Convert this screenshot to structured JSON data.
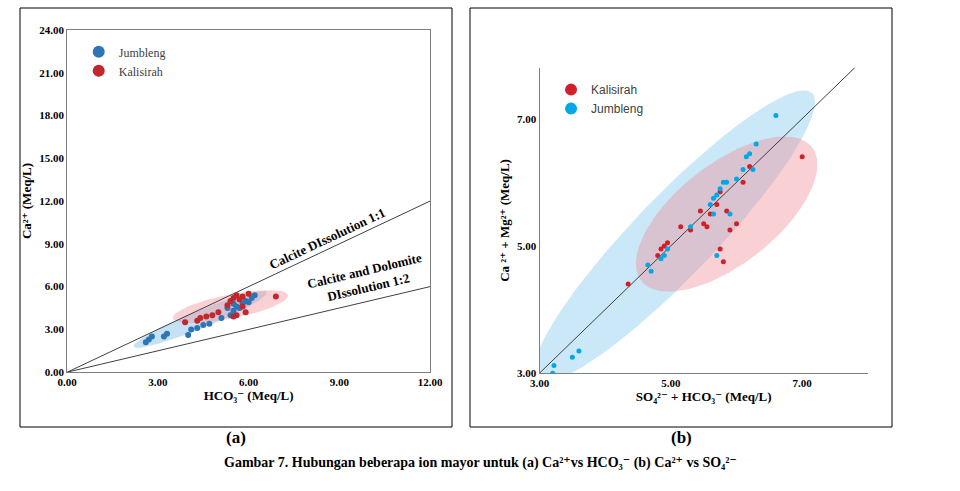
{
  "caption": "Gambar 7. Hubungan beberapa ion mayor untuk (a) Ca²⁺vs HCO₃⁻ (b) Ca²⁺ vs SO₄²⁻",
  "chart_data": [
    {
      "type": "scatter",
      "panel_label": "(a)",
      "x_label": "HCO₃⁻ (Meq/L)",
      "y_label": "Ca²⁺ (Meq/L)",
      "xlim": [
        0,
        12
      ],
      "ylim": [
        0,
        24
      ],
      "xticks": [
        {
          "value": 0,
          "label": "0.00"
        },
        {
          "value": 3,
          "label": "3.00"
        },
        {
          "value": 6,
          "label": "6.00"
        },
        {
          "value": 9,
          "label": "9.00"
        },
        {
          "value": 12,
          "label": "12.00"
        }
      ],
      "yticks": [
        {
          "value": 0,
          "label": "0.00"
        },
        {
          "value": 3,
          "label": "3.00"
        },
        {
          "value": 6,
          "label": "6.00"
        },
        {
          "value": 9,
          "label": "9.00"
        },
        {
          "value": 12,
          "label": "12.00"
        },
        {
          "value": 15,
          "label": "15.00"
        },
        {
          "value": 18,
          "label": "18.00"
        },
        {
          "value": 21,
          "label": "21.00"
        },
        {
          "value": 24,
          "label": "24.00"
        }
      ],
      "grid": false,
      "legend": "upper left",
      "marker": "circle",
      "reference_lines": [
        {
          "x": [
            0,
            12
          ],
          "y": [
            0,
            12
          ],
          "color": "#404040"
        },
        {
          "x": [
            0,
            12
          ],
          "y": [
            0,
            6
          ],
          "color": "#404040"
        }
      ],
      "annotations": [
        {
          "text": "Calcite DIssolution 1:1",
          "x": 8.6,
          "y": 9.4
        },
        {
          "text": "Calcite and Dolomite\nDIssolution 1:2",
          "x": 9.9,
          "y": 6.5
        }
      ],
      "regions": [
        {
          "center": [
            4.4,
            3.7
          ],
          "major": [
            6.6,
            5.6
          ],
          "minor": [
            4.3,
            4.29
          ],
          "color": "rgba(150,200,235,0.55)"
        },
        {
          "center": [
            5.4,
            4.6
          ],
          "major": [
            7.3,
            5.4
          ],
          "minor": [
            5.33,
            5.43
          ],
          "color": "rgba(240,140,150,0.40)"
        }
      ],
      "series": [
        {
          "name": "Jumbleng",
          "color": "#2e75b6",
          "x": [
            2.6,
            2.7,
            2.8,
            3.2,
            3.3,
            4.0,
            4.1,
            4.3,
            4.5,
            4.7,
            5.1,
            5.4,
            5.5,
            5.6,
            5.7,
            5.8,
            5.9,
            6.0,
            6.1,
            6.2,
            5.5,
            5.3
          ],
          "values": [
            2.1,
            2.3,
            2.5,
            2.5,
            2.7,
            2.6,
            3.0,
            3.1,
            3.3,
            3.4,
            3.8,
            4.0,
            4.3,
            4.6,
            4.5,
            4.8,
            5.0,
            4.9,
            5.2,
            5.4,
            4.8,
            4.5
          ]
        },
        {
          "name": "Kalisirah",
          "color": "#c0282d",
          "x": [
            3.9,
            4.3,
            4.4,
            4.6,
            4.8,
            5.0,
            5.3,
            5.4,
            5.5,
            5.6,
            5.7,
            5.8,
            5.9,
            5.5,
            5.6,
            6.0,
            6.9,
            5.8
          ],
          "values": [
            3.5,
            3.6,
            3.8,
            3.9,
            4.0,
            4.2,
            4.7,
            5.0,
            5.2,
            5.4,
            5.1,
            4.6,
            4.2,
            3.9,
            4.0,
            5.5,
            5.3,
            5.3
          ]
        }
      ]
    },
    {
      "type": "scatter",
      "panel_label": "(b)",
      "x_label": "SO₄²⁻ + HCO₃⁻ (Meq/L)",
      "y_label": "Ca ²⁺ + Mg²⁺ (Meq/L)",
      "xlim": [
        3,
        8
      ],
      "ylim": [
        3,
        7.8
      ],
      "xticks": [
        {
          "value": 3,
          "label": "3.00"
        },
        {
          "value": 5,
          "label": "5.00"
        },
        {
          "value": 7,
          "label": "7.00"
        }
      ],
      "yticks": [
        {
          "value": 3,
          "label": "3.00"
        },
        {
          "value": 5,
          "label": "5.00"
        },
        {
          "value": 7,
          "label": "7.00"
        }
      ],
      "grid": false,
      "legend": "upper left",
      "marker": "circle",
      "reference_lines": [
        {
          "x": [
            3,
            8
          ],
          "y": [
            3,
            8
          ],
          "color": "#404040"
        }
      ],
      "regions": [
        {
          "center": [
            5.05,
            5.15
          ],
          "major": [
            7.15,
            7.4
          ],
          "minor": [
            4.61,
            5.59
          ],
          "color": "rgba(150,210,240,0.50)"
        },
        {
          "center": [
            5.85,
            5.5
          ],
          "major": [
            7.15,
            6.55
          ],
          "minor": [
            5.38,
            6.12
          ],
          "color": "rgba(240,140,150,0.40)"
        }
      ],
      "series": [
        {
          "name": "Kalisirah",
          "color": "#d1202a",
          "x": [
            4.35,
            4.8,
            4.85,
            4.9,
            4.95,
            5.15,
            5.3,
            5.45,
            5.55,
            5.6,
            5.7,
            5.75,
            5.8,
            5.85,
            5.9,
            6.0,
            6.1,
            6.2,
            7.0,
            5.75,
            5.5
          ],
          "values": [
            4.4,
            4.85,
            4.95,
            5.0,
            5.05,
            5.3,
            5.25,
            5.55,
            5.3,
            5.5,
            5.65,
            4.95,
            4.75,
            5.55,
            5.25,
            5.35,
            6.0,
            6.25,
            6.4,
            5.85,
            5.35
          ]
        },
        {
          "name": "Jumbleng",
          "color": "#00a8e8",
          "x": [
            3.2,
            3.22,
            3.5,
            3.6,
            4.65,
            4.7,
            4.85,
            4.9,
            5.6,
            5.65,
            5.7,
            5.75,
            5.8,
            5.85,
            5.65,
            5.9,
            5.7,
            6.1,
            6.15,
            6.2,
            6.25,
            6.3,
            6.6,
            5.3,
            4.95,
            6.0
          ],
          "values": [
            3.0,
            3.12,
            3.25,
            3.35,
            4.7,
            4.6,
            4.8,
            4.85,
            5.65,
            5.75,
            5.8,
            5.9,
            6.0,
            6.0,
            5.5,
            5.5,
            4.85,
            6.2,
            6.4,
            6.45,
            6.2,
            6.6,
            7.05,
            5.3,
            4.95,
            6.05
          ]
        }
      ]
    }
  ]
}
